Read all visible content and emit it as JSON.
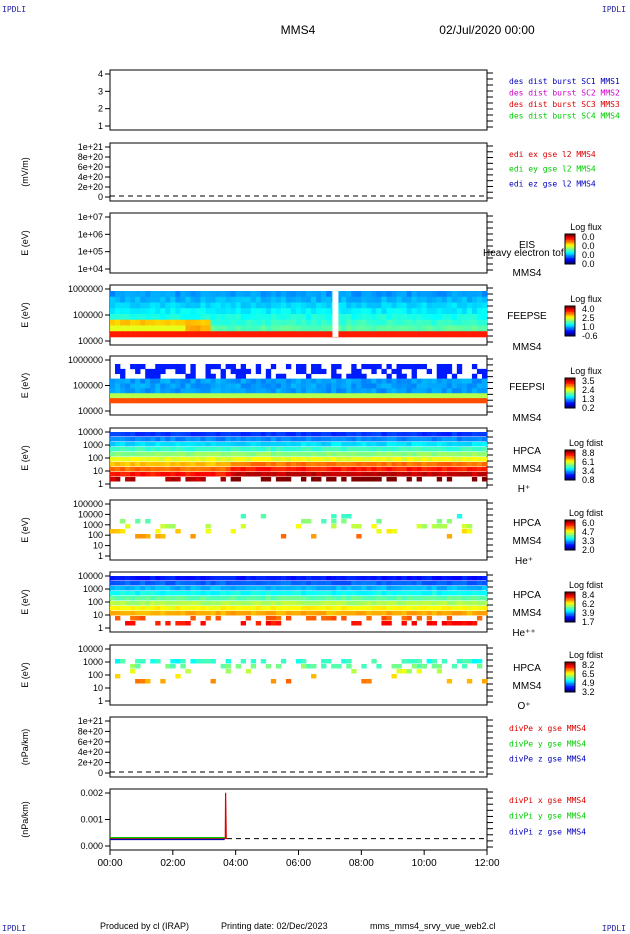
{
  "header": {
    "corner_tl": "IPDLI",
    "corner_tr": "IPDLI",
    "corner_bl": "IPDLI",
    "corner_br": "IPDLI",
    "title": "MMS4",
    "datetime": "02/Jul/2020 00:00"
  },
  "footer": {
    "produced": "Produced by cl (IRAP)",
    "printing": "Printing date: 02/Dec/2023",
    "script": "mms_mms4_srvy_vue_web2.cl"
  },
  "colors": {
    "red": "#dd0000",
    "green": "#00cc00",
    "blue": "#0000bb",
    "magenta": "#cc00cc",
    "frame": "#000000"
  },
  "chart_data": [
    {
      "panel": "des-dist",
      "type": "line",
      "ylabel": "",
      "ticks": [
        "4",
        "3",
        "2",
        "1"
      ],
      "ylim": [
        0.5,
        4.5
      ],
      "legend": [
        {
          "text": "des dist burst SC1 MMS1",
          "color": "#0000bb"
        },
        {
          "text": "des dist burst SC2 MMS2",
          "color": "#cc00cc"
        },
        {
          "text": "des dist burst SC3 MMS3",
          "color": "#dd0000"
        },
        {
          "text": "des dist burst SC4 MMS4",
          "color": "#00cc00"
        }
      ],
      "series": []
    },
    {
      "panel": "edi",
      "type": "line",
      "ylabel": "(mV/m)",
      "ticks": [
        "1e+21",
        "8e+20",
        "6e+20",
        "4e+20",
        "2e+20",
        "0"
      ],
      "legend": [
        {
          "text": "edi ex gse l2 MMS4",
          "color": "#dd0000"
        },
        {
          "text": "edi ey gse l2 MMS4",
          "color": "#00cc00"
        },
        {
          "text": "edi ez gse l2 MMS4",
          "color": "#0000bb"
        }
      ],
      "zero_line": true,
      "series": []
    },
    {
      "panel": "eis",
      "type": "heatmap",
      "ylabel": "E (eV)",
      "ticks": [
        "1e+07",
        "1e+06",
        "1e+05",
        "1e+04"
      ],
      "labels": [
        "EIS",
        "Heavy electron tof",
        "MMS4"
      ],
      "colorbar": {
        "title": "Log flux",
        "ticks": [
          "0.0",
          "0.0",
          "0.0",
          "0.0"
        ]
      }
    },
    {
      "panel": "feeps-e",
      "type": "heatmap",
      "ylabel": "E (eV)",
      "ticks": [
        "1000000",
        "100000",
        "10000"
      ],
      "labels": [
        "FEEPSE",
        "MMS4"
      ],
      "colorbar": {
        "title": "Log flux",
        "ticks": [
          "4.0",
          "2.5",
          "1.0",
          "-0.6"
        ]
      }
    },
    {
      "panel": "feeps-i",
      "type": "heatmap",
      "ylabel": "E (eV)",
      "ticks": [
        "1000000",
        "100000",
        "10000"
      ],
      "labels": [
        "FEEPSI",
        "MMS4"
      ],
      "colorbar": {
        "title": "Log flux",
        "ticks": [
          "3.5",
          "2.4",
          "1.3",
          "0.2"
        ]
      }
    },
    {
      "panel": "hpca-h",
      "type": "heatmap",
      "ylabel": "E (eV)",
      "ticks": [
        "10000",
        "1000",
        "100",
        "10",
        "1"
      ],
      "labels": [
        "HPCA",
        "MMS4",
        "H⁺"
      ],
      "colorbar": {
        "title": "Log fdist",
        "ticks": [
          "8.8",
          "6.1",
          "3.4",
          "0.8"
        ]
      }
    },
    {
      "panel": "hpca-he",
      "type": "heatmap",
      "ylabel": "E (eV)",
      "ticks": [
        "100000",
        "10000",
        "1000",
        "100",
        "10",
        "1"
      ],
      "labels": [
        "HPCA",
        "MMS4",
        "He⁺"
      ],
      "colorbar": {
        "title": "Log fdist",
        "ticks": [
          "6.0",
          "4.7",
          "3.3",
          "2.0"
        ]
      }
    },
    {
      "panel": "hpca-hepp",
      "type": "heatmap",
      "ylabel": "E (eV)",
      "ticks": [
        "10000",
        "1000",
        "100",
        "10",
        "1"
      ],
      "labels": [
        "HPCA",
        "MMS4",
        "He⁺⁺"
      ],
      "colorbar": {
        "title": "Log fdist",
        "ticks": [
          "8.4",
          "6.2",
          "3.9",
          "1.7"
        ]
      }
    },
    {
      "panel": "hpca-o",
      "type": "heatmap",
      "ylabel": "E (eV)",
      "ticks": [
        "10000",
        "1000",
        "100",
        "10",
        "1"
      ],
      "labels": [
        "HPCA",
        "MMS4",
        "O⁺"
      ],
      "colorbar": {
        "title": "Log fdist",
        "ticks": [
          "8.2",
          "6.5",
          "4.9",
          "3.2"
        ]
      }
    },
    {
      "panel": "divpe",
      "type": "line",
      "ylabel": "(nPa/km)",
      "ticks": [
        "1e+21",
        "8e+20",
        "6e+20",
        "4e+20",
        "2e+20",
        "0"
      ],
      "legend": [
        {
          "text": "divPe x gse MMS4",
          "color": "#dd0000"
        },
        {
          "text": "divPe y gse MMS4",
          "color": "#00cc00"
        },
        {
          "text": "divPe z gse MMS4",
          "color": "#0000bb"
        }
      ],
      "zero_line": true,
      "series": []
    },
    {
      "panel": "divpi",
      "type": "line",
      "ylabel": "(nPa/km)",
      "ticks": [
        "0.002",
        "0.001",
        "0.000"
      ],
      "ylim": [
        -0.0006,
        0.0026
      ],
      "legend": [
        {
          "text": "divPi x gse MMS4",
          "color": "#dd0000"
        },
        {
          "text": "divPi y gse MMS4",
          "color": "#00cc00"
        },
        {
          "text": "divPi z gse MMS4",
          "color": "#0000bb"
        }
      ],
      "zero_line": true,
      "series": [
        {
          "name": "divPi x gse MMS4",
          "color": "#dd0000",
          "x": [
            0,
            3.6,
            3.67,
            3.68,
            3.7,
            3.72
          ],
          "y": [
            0.0,
            0.0,
            0.0,
            0.0024,
            0.0,
            0.0
          ]
        },
        {
          "name": "divPi y gse MMS4",
          "color": "#00cc00",
          "x": [
            0,
            3.65
          ],
          "y": [
            5e-05,
            5e-05
          ]
        },
        {
          "name": "divPi z gse MMS4",
          "color": "#0000bb",
          "x": [
            0,
            3.65
          ],
          "y": [
            -5e-05,
            -5e-05
          ]
        }
      ]
    }
  ],
  "x_axis": {
    "ticks": [
      "00:00",
      "02:00",
      "04:00",
      "06:00",
      "08:00",
      "10:00",
      "12:00"
    ],
    "xlim": [
      0,
      12
    ]
  }
}
